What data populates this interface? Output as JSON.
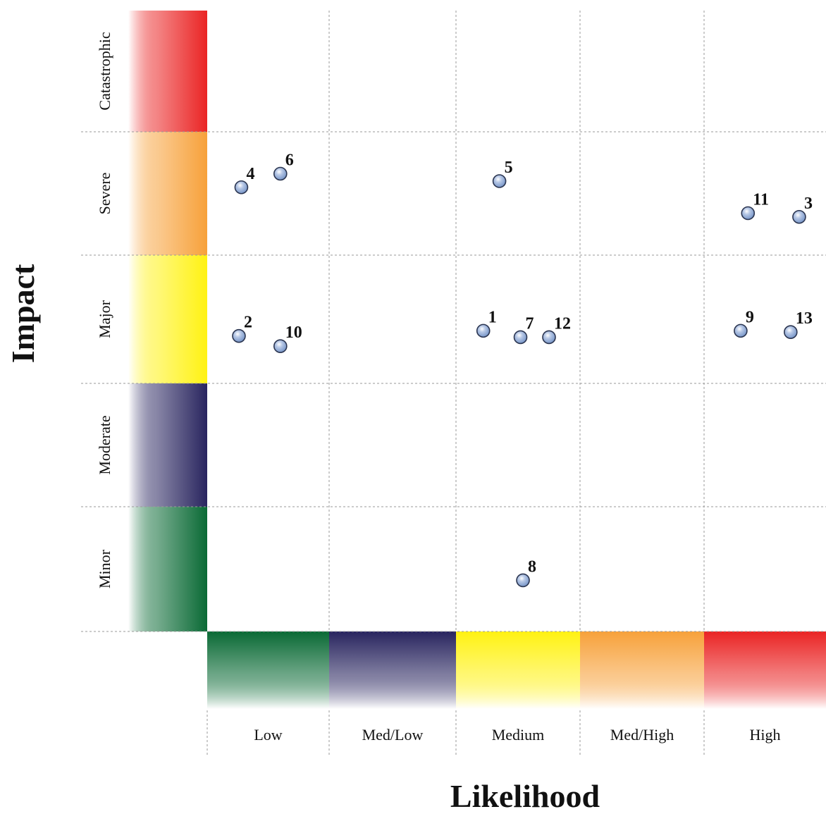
{
  "chart_data": {
    "type": "scatter",
    "title": "",
    "xlabel": "Likelihood",
    "ylabel": "Impact",
    "x_categories": [
      {
        "label": "Low",
        "color": "#0a6a35"
      },
      {
        "label": "Med/Low",
        "color": "#29255f"
      },
      {
        "label": "Medium",
        "color": "#fff212"
      },
      {
        "label": "Med/High",
        "color": "#f7a13a"
      },
      {
        "label": "High",
        "color": "#ea2424"
      }
    ],
    "y_categories": [
      {
        "label": "Minor",
        "color": "#0a6a35"
      },
      {
        "label": "Moderate",
        "color": "#29255f"
      },
      {
        "label": "Major",
        "color": "#fff212"
      },
      {
        "label": "Severe",
        "color": "#f7a13a"
      },
      {
        "label": "Catastrophic",
        "color": "#ea2424"
      }
    ],
    "xlim": [
      0,
      5
    ],
    "ylim": [
      0,
      5
    ],
    "grid": true,
    "point_color": "#6f8fc4",
    "points": [
      {
        "label": "1",
        "x": 2.22,
        "y": 2.41
      },
      {
        "label": "2",
        "x": 0.26,
        "y": 2.37
      },
      {
        "label": "3",
        "x": 4.78,
        "y": 3.31
      },
      {
        "label": "4",
        "x": 0.28,
        "y": 3.55
      },
      {
        "label": "5",
        "x": 2.35,
        "y": 3.6
      },
      {
        "label": "6",
        "x": 0.6,
        "y": 3.66
      },
      {
        "label": "7",
        "x": 2.52,
        "y": 2.36
      },
      {
        "label": "8",
        "x": 2.54,
        "y": 0.41
      },
      {
        "label": "9",
        "x": 4.3,
        "y": 2.41
      },
      {
        "label": "10",
        "x": 0.6,
        "y": 2.29
      },
      {
        "label": "11",
        "x": 4.36,
        "y": 3.34
      },
      {
        "label": "12",
        "x": 2.75,
        "y": 2.36
      },
      {
        "label": "13",
        "x": 4.71,
        "y": 2.4
      }
    ]
  }
}
